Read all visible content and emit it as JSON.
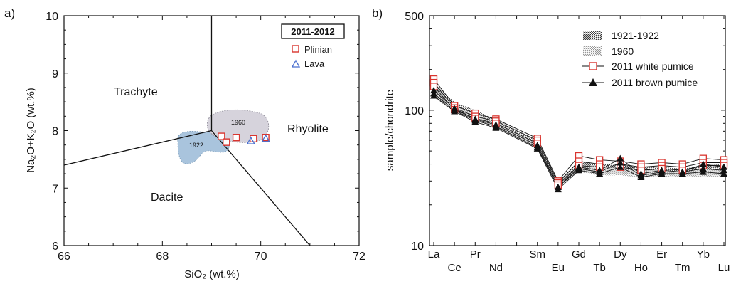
{
  "colors": {
    "plinian": "#d9352f",
    "lava": "#4a6fcf",
    "field1922": "#a9c4dd",
    "field1960": "#d6d3dc",
    "line": "#111111"
  },
  "chart_data": [
    {
      "panel_label": "a)",
      "type": "scatter",
      "xlabel": "SiO₂  (wt.%)",
      "ylabel": "Na₂O+K₂O  (wt.%)",
      "xlim": [
        66,
        72
      ],
      "ylim": [
        6,
        10
      ],
      "x_ticks": [
        "66",
        "68",
        "70",
        "72"
      ],
      "y_ticks": [
        "6",
        "7",
        "8",
        "9",
        "10"
      ],
      "legend_title": "2011-2012",
      "legend_position": "top-right",
      "series": [
        {
          "name": "Plinian",
          "marker": "square",
          "points": [
            [
              69.2,
              7.9
            ],
            [
              69.3,
              7.8
            ],
            [
              69.5,
              7.88
            ],
            [
              69.85,
              7.86
            ],
            [
              70.1,
              7.88
            ]
          ]
        },
        {
          "name": "Lava",
          "marker": "triangle",
          "points": [
            [
              69.8,
              7.82
            ],
            [
              70.1,
              7.86
            ]
          ]
        }
      ],
      "region_labels": [
        "Trachyte",
        "Rhyolite",
        "Dacite"
      ],
      "field_labels": [
        "1960",
        "1922"
      ],
      "boundaries": [
        [
          [
            66,
            7.4
          ],
          [
            69,
            8.0
          ]
        ],
        [
          [
            69,
            10
          ],
          [
            69,
            8.0
          ]
        ],
        [
          [
            69,
            8.0
          ],
          [
            71,
            6
          ]
        ]
      ]
    },
    {
      "panel_label": "b)",
      "type": "line",
      "ylabel": "sample/chondrite",
      "yscale": "log",
      "ylim": [
        10,
        500
      ],
      "y_ticks": [
        "10",
        "100",
        "500"
      ],
      "categories": [
        "La",
        "Ce",
        "Pr",
        "Nd",
        "Sm",
        "Eu",
        "Gd",
        "Tb",
        "Dy",
        "Ho",
        "Er",
        "Tm",
        "Yb",
        "Lu"
      ],
      "category_positions": [
        57,
        58,
        59,
        60,
        62,
        63,
        64,
        65,
        66,
        67,
        68,
        69,
        70,
        71
      ],
      "legend_position": "top-right",
      "fields": [
        {
          "name": "1921-1922",
          "upper": [
            160,
            115,
            100,
            85,
            60,
            30,
            42,
            40,
            40,
            38,
            38,
            37,
            39,
            40
          ],
          "lower": [
            125,
            97,
            85,
            74,
            52,
            27,
            36,
            34,
            34,
            33,
            33,
            33,
            33,
            33
          ]
        },
        {
          "name": "1960",
          "upper": [
            150,
            108,
            95,
            82,
            57,
            28,
            40,
            38,
            38,
            36,
            36,
            35,
            37,
            37
          ],
          "lower": [
            128,
            99,
            86,
            75,
            52,
            27,
            35,
            33,
            33,
            32,
            32,
            32,
            32,
            32
          ]
        }
      ],
      "series": [
        {
          "name": "2011 white pumice",
          "marker": "open-square",
          "lines": [
            [
              170,
              108,
              95,
              86,
              62,
              30,
              46,
              43,
              42,
              40,
              41,
              40,
              44,
              43
            ],
            [
              160,
              104,
              90,
              83,
              60,
              29,
              42,
              40,
              40,
              38,
              39,
              38,
              41,
              41
            ],
            [
              150,
              101,
              87,
              80,
              57,
              28,
              39,
              38,
              38,
              36,
              37,
              36,
              39,
              39
            ]
          ]
        },
        {
          "name": "2011 brown pumice",
          "marker": "filled-triangle",
          "lines": [
            [
              140,
              103,
              86,
              78,
              55,
              27,
              38,
              36,
              44,
              34,
              36,
              35,
              40,
              38
            ],
            [
              133,
              100,
              84,
              76,
              53,
              27,
              37,
              35,
              41,
              33,
              35,
              35,
              37,
              36
            ],
            [
              128,
              98,
              82,
              74,
              52,
              26,
              36,
              34,
              38,
              32,
              34,
              34,
              35,
              34
            ]
          ]
        }
      ]
    }
  ]
}
